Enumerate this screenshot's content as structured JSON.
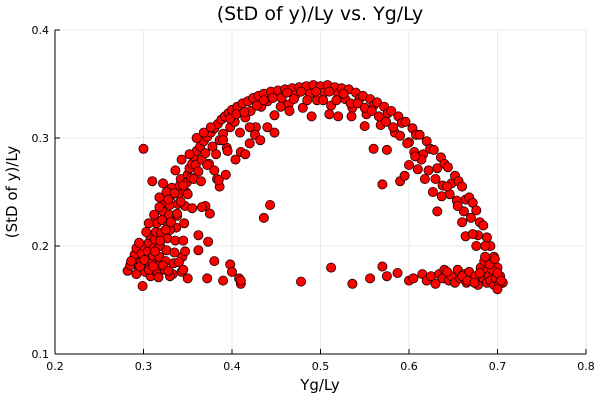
{
  "chart_data": {
    "type": "scatter",
    "title": "(StD of y)/Ly vs. Yg/Ly",
    "xlabel": "Yg/Ly",
    "ylabel": "(StD of y)/Ly",
    "xlim": [
      0.2,
      0.8
    ],
    "ylim": [
      0.1,
      0.4
    ],
    "xticks": [
      "0.2",
      "0.3",
      "0.4",
      "0.5",
      "0.6",
      "0.7",
      "0.8"
    ],
    "yticks": [
      "0.1",
      "0.2",
      "0.3",
      "0.4"
    ],
    "grid": true,
    "legend": "none",
    "marker_color": "#ff0000",
    "marker_edge_color": "#1a0000",
    "points": [
      [
        0.282,
        0.177
      ],
      [
        0.285,
        0.182
      ],
      [
        0.288,
        0.187
      ],
      [
        0.29,
        0.192
      ],
      [
        0.292,
        0.198
      ],
      [
        0.295,
        0.179
      ],
      [
        0.297,
        0.185
      ],
      [
        0.298,
        0.193
      ],
      [
        0.299,
        0.163
      ],
      [
        0.3,
        0.2
      ],
      [
        0.302,
        0.176
      ],
      [
        0.303,
        0.181
      ],
      [
        0.304,
        0.188
      ],
      [
        0.305,
        0.195
      ],
      [
        0.306,
        0.203
      ],
      [
        0.307,
        0.21
      ],
      [
        0.308,
        0.172
      ],
      [
        0.309,
        0.178
      ],
      [
        0.31,
        0.185
      ],
      [
        0.311,
        0.191
      ],
      [
        0.312,
        0.198
      ],
      [
        0.313,
        0.206
      ],
      [
        0.314,
        0.213
      ],
      [
        0.315,
        0.221
      ],
      [
        0.316,
        0.175
      ],
      [
        0.317,
        0.182
      ],
      [
        0.318,
        0.19
      ],
      [
        0.319,
        0.2
      ],
      [
        0.32,
        0.212
      ],
      [
        0.321,
        0.224
      ],
      [
        0.322,
        0.232
      ],
      [
        0.323,
        0.241
      ],
      [
        0.324,
        0.178
      ],
      [
        0.325,
        0.186
      ],
      [
        0.326,
        0.196
      ],
      [
        0.327,
        0.207
      ],
      [
        0.328,
        0.219
      ],
      [
        0.329,
        0.229
      ],
      [
        0.33,
        0.238
      ],
      [
        0.331,
        0.246
      ],
      [
        0.332,
        0.254
      ],
      [
        0.333,
        0.174
      ],
      [
        0.334,
        0.184
      ],
      [
        0.335,
        0.194
      ],
      [
        0.336,
        0.205
      ],
      [
        0.337,
        0.217
      ],
      [
        0.338,
        0.228
      ],
      [
        0.339,
        0.239
      ],
      [
        0.34,
        0.248
      ],
      [
        0.341,
        0.256
      ],
      [
        0.342,
        0.262
      ],
      [
        0.343,
        0.176
      ],
      [
        0.344,
        0.19
      ],
      [
        0.345,
        0.205
      ],
      [
        0.346,
        0.221
      ],
      [
        0.347,
        0.237
      ],
      [
        0.348,
        0.25
      ],
      [
        0.349,
        0.259
      ],
      [
        0.35,
        0.266
      ],
      [
        0.352,
        0.272
      ],
      [
        0.354,
        0.263
      ],
      [
        0.355,
        0.276
      ],
      [
        0.357,
        0.283
      ],
      [
        0.359,
        0.275
      ],
      [
        0.36,
        0.288
      ],
      [
        0.362,
        0.269
      ],
      [
        0.364,
        0.292
      ],
      [
        0.366,
        0.28
      ],
      [
        0.368,
        0.297
      ],
      [
        0.37,
        0.286
      ],
      [
        0.372,
        0.301
      ],
      [
        0.374,
        0.276
      ],
      [
        0.376,
        0.305
      ],
      [
        0.378,
        0.292
      ],
      [
        0.38,
        0.309
      ],
      [
        0.382,
        0.285
      ],
      [
        0.384,
        0.313
      ],
      [
        0.386,
        0.298
      ],
      [
        0.388,
        0.317
      ],
      [
        0.39,
        0.304
      ],
      [
        0.392,
        0.32
      ],
      [
        0.394,
        0.291
      ],
      [
        0.396,
        0.323
      ],
      [
        0.398,
        0.31
      ],
      [
        0.4,
        0.326
      ],
      [
        0.403,
        0.315
      ],
      [
        0.406,
        0.329
      ],
      [
        0.409,
        0.305
      ],
      [
        0.412,
        0.332
      ],
      [
        0.415,
        0.319
      ],
      [
        0.418,
        0.334
      ],
      [
        0.421,
        0.325
      ],
      [
        0.424,
        0.337
      ],
      [
        0.427,
        0.31
      ],
      [
        0.43,
        0.339
      ],
      [
        0.433,
        0.329
      ],
      [
        0.436,
        0.341
      ],
      [
        0.44,
        0.334
      ],
      [
        0.444,
        0.343
      ],
      [
        0.448,
        0.321
      ],
      [
        0.452,
        0.344
      ],
      [
        0.456,
        0.337
      ],
      [
        0.46,
        0.345
      ],
      [
        0.464,
        0.331
      ],
      [
        0.468,
        0.346
      ],
      [
        0.472,
        0.34
      ],
      [
        0.476,
        0.347
      ],
      [
        0.48,
        0.328
      ],
      [
        0.484,
        0.348
      ],
      [
        0.488,
        0.341
      ],
      [
        0.492,
        0.349
      ],
      [
        0.496,
        0.335
      ],
      [
        0.5,
        0.348
      ],
      [
        0.504,
        0.342
      ],
      [
        0.508,
        0.349
      ],
      [
        0.512,
        0.33
      ],
      [
        0.516,
        0.347
      ],
      [
        0.52,
        0.341
      ],
      [
        0.524,
        0.346
      ],
      [
        0.528,
        0.336
      ],
      [
        0.532,
        0.345
      ],
      [
        0.536,
        0.328
      ],
      [
        0.54,
        0.342
      ],
      [
        0.544,
        0.336
      ],
      [
        0.548,
        0.339
      ],
      [
        0.552,
        0.322
      ],
      [
        0.556,
        0.336
      ],
      [
        0.56,
        0.33
      ],
      [
        0.564,
        0.333
      ],
      [
        0.568,
        0.312
      ],
      [
        0.572,
        0.329
      ],
      [
        0.576,
        0.323
      ],
      [
        0.58,
        0.325
      ],
      [
        0.584,
        0.305
      ],
      [
        0.588,
        0.32
      ],
      [
        0.592,
        0.314
      ],
      [
        0.596,
        0.315
      ],
      [
        0.6,
        0.296
      ],
      [
        0.604,
        0.309
      ],
      [
        0.608,
        0.303
      ],
      [
        0.612,
        0.303
      ],
      [
        0.616,
        0.285
      ],
      [
        0.62,
        0.297
      ],
      [
        0.624,
        0.29
      ],
      [
        0.628,
        0.289
      ],
      [
        0.632,
        0.272
      ],
      [
        0.636,
        0.282
      ],
      [
        0.64,
        0.276
      ],
      [
        0.644,
        0.273
      ],
      [
        0.648,
        0.258
      ],
      [
        0.652,
        0.265
      ],
      [
        0.656,
        0.26
      ],
      [
        0.66,
        0.255
      ],
      [
        0.664,
        0.243
      ],
      [
        0.668,
        0.245
      ],
      [
        0.672,
        0.24
      ],
      [
        0.676,
        0.233
      ],
      [
        0.68,
        0.222
      ],
      [
        0.684,
        0.219
      ],
      [
        0.688,
        0.208
      ],
      [
        0.692,
        0.2
      ],
      [
        0.696,
        0.19
      ],
      [
        0.7,
        0.18
      ],
      [
        0.703,
        0.172
      ],
      [
        0.706,
        0.166
      ],
      [
        0.3,
        0.29
      ],
      [
        0.31,
        0.26
      ],
      [
        0.318,
        0.245
      ],
      [
        0.326,
        0.25
      ],
      [
        0.336,
        0.27
      ],
      [
        0.343,
        0.28
      ],
      [
        0.352,
        0.285
      ],
      [
        0.36,
        0.3
      ],
      [
        0.368,
        0.305
      ],
      [
        0.376,
        0.31
      ],
      [
        0.38,
        0.27
      ],
      [
        0.383,
        0.262
      ],
      [
        0.386,
        0.255
      ],
      [
        0.39,
        0.298
      ],
      [
        0.398,
        0.318
      ],
      [
        0.405,
        0.322
      ],
      [
        0.414,
        0.324
      ],
      [
        0.42,
        0.31
      ],
      [
        0.426,
        0.303
      ],
      [
        0.428,
        0.33
      ],
      [
        0.436,
        0.335
      ],
      [
        0.446,
        0.337
      ],
      [
        0.455,
        0.329
      ],
      [
        0.462,
        0.342
      ],
      [
        0.47,
        0.336
      ],
      [
        0.478,
        0.343
      ],
      [
        0.485,
        0.335
      ],
      [
        0.495,
        0.343
      ],
      [
        0.503,
        0.335
      ],
      [
        0.51,
        0.343
      ],
      [
        0.518,
        0.335
      ],
      [
        0.526,
        0.341
      ],
      [
        0.534,
        0.332
      ],
      [
        0.542,
        0.332
      ],
      [
        0.55,
        0.328
      ],
      [
        0.558,
        0.325
      ],
      [
        0.566,
        0.32
      ],
      [
        0.574,
        0.315
      ],
      [
        0.582,
        0.31
      ],
      [
        0.59,
        0.302
      ],
      [
        0.598,
        0.295
      ],
      [
        0.606,
        0.287
      ],
      [
        0.614,
        0.28
      ],
      [
        0.622,
        0.27
      ],
      [
        0.63,
        0.262
      ],
      [
        0.638,
        0.256
      ],
      [
        0.646,
        0.248
      ],
      [
        0.654,
        0.242
      ],
      [
        0.662,
        0.232
      ],
      [
        0.67,
        0.226
      ],
      [
        0.678,
        0.21
      ],
      [
        0.686,
        0.2
      ],
      [
        0.34,
        0.185
      ],
      [
        0.347,
        0.195
      ],
      [
        0.355,
        0.235
      ],
      [
        0.362,
        0.21
      ],
      [
        0.37,
        0.237
      ],
      [
        0.375,
        0.23
      ],
      [
        0.385,
        0.261
      ],
      [
        0.393,
        0.266
      ],
      [
        0.395,
        0.288
      ],
      [
        0.404,
        0.28
      ],
      [
        0.41,
        0.287
      ],
      [
        0.415,
        0.285
      ],
      [
        0.42,
        0.295
      ],
      [
        0.432,
        0.298
      ],
      [
        0.44,
        0.31
      ],
      [
        0.448,
        0.305
      ],
      [
        0.465,
        0.325
      ],
      [
        0.49,
        0.32
      ],
      [
        0.51,
        0.322
      ],
      [
        0.52,
        0.32
      ],
      [
        0.535,
        0.32
      ],
      [
        0.55,
        0.311
      ],
      [
        0.56,
        0.29
      ],
      [
        0.57,
        0.257
      ],
      [
        0.575,
        0.289
      ],
      [
        0.59,
        0.26
      ],
      [
        0.595,
        0.265
      ],
      [
        0.6,
        0.275
      ],
      [
        0.607,
        0.283
      ],
      [
        0.61,
        0.271
      ],
      [
        0.618,
        0.262
      ],
      [
        0.627,
        0.25
      ],
      [
        0.632,
        0.232
      ],
      [
        0.637,
        0.246
      ],
      [
        0.643,
        0.255
      ],
      [
        0.655,
        0.237
      ],
      [
        0.66,
        0.222
      ],
      [
        0.664,
        0.209
      ],
      [
        0.672,
        0.211
      ],
      [
        0.676,
        0.2
      ],
      [
        0.318,
        0.236
      ],
      [
        0.322,
        0.258
      ],
      [
        0.33,
        0.215
      ],
      [
        0.338,
        0.23
      ],
      [
        0.345,
        0.256
      ],
      [
        0.35,
        0.248
      ],
      [
        0.357,
        0.262
      ],
      [
        0.365,
        0.26
      ],
      [
        0.372,
        0.275
      ],
      [
        0.366,
        0.236
      ],
      [
        0.436,
        0.226
      ],
      [
        0.443,
        0.238
      ],
      [
        0.373,
        0.204
      ],
      [
        0.362,
        0.196
      ],
      [
        0.33,
        0.172
      ],
      [
        0.345,
        0.178
      ],
      [
        0.35,
        0.17
      ],
      [
        0.372,
        0.17
      ],
      [
        0.38,
        0.186
      ],
      [
        0.39,
        0.168
      ],
      [
        0.398,
        0.183
      ],
      [
        0.4,
        0.176
      ],
      [
        0.408,
        0.17
      ],
      [
        0.41,
        0.165
      ],
      [
        0.41,
        0.168
      ],
      [
        0.478,
        0.167
      ],
      [
        0.512,
        0.18
      ],
      [
        0.536,
        0.165
      ],
      [
        0.556,
        0.17
      ],
      [
        0.57,
        0.181
      ],
      [
        0.575,
        0.172
      ],
      [
        0.587,
        0.175
      ],
      [
        0.6,
        0.168
      ],
      [
        0.605,
        0.17
      ],
      [
        0.615,
        0.174
      ],
      [
        0.62,
        0.168
      ],
      [
        0.625,
        0.172
      ],
      [
        0.63,
        0.165
      ],
      [
        0.634,
        0.174
      ],
      [
        0.638,
        0.17
      ],
      [
        0.64,
        0.178
      ],
      [
        0.645,
        0.168
      ],
      [
        0.648,
        0.172
      ],
      [
        0.652,
        0.166
      ],
      [
        0.655,
        0.178
      ],
      [
        0.658,
        0.17
      ],
      [
        0.662,
        0.174
      ],
      [
        0.665,
        0.166
      ],
      [
        0.668,
        0.176
      ],
      [
        0.672,
        0.168
      ],
      [
        0.675,
        0.172
      ],
      [
        0.678,
        0.164
      ],
      [
        0.681,
        0.18
      ],
      [
        0.684,
        0.17
      ],
      [
        0.686,
        0.176
      ],
      [
        0.688,
        0.166
      ],
      [
        0.69,
        0.172
      ],
      [
        0.692,
        0.168
      ],
      [
        0.694,
        0.178
      ],
      [
        0.696,
        0.164
      ],
      [
        0.698,
        0.17
      ],
      [
        0.7,
        0.175
      ],
      [
        0.702,
        0.165
      ],
      [
        0.704,
        0.168
      ],
      [
        0.643,
        0.176
      ],
      [
        0.66,
        0.172
      ],
      [
        0.666,
        0.168
      ],
      [
        0.674,
        0.166
      ],
      [
        0.68,
        0.175
      ],
      [
        0.685,
        0.186
      ],
      [
        0.691,
        0.183
      ],
      [
        0.697,
        0.188
      ],
      [
        0.686,
        0.19
      ],
      [
        0.7,
        0.16
      ],
      [
        0.286,
        0.186
      ],
      [
        0.292,
        0.174
      ],
      [
        0.296,
        0.181
      ],
      [
        0.301,
        0.187
      ],
      [
        0.306,
        0.178
      ],
      [
        0.311,
        0.181
      ],
      [
        0.317,
        0.171
      ],
      [
        0.322,
        0.182
      ],
      [
        0.328,
        0.177
      ],
      [
        0.313,
        0.195
      ],
      [
        0.319,
        0.205
      ],
      [
        0.325,
        0.215
      ],
      [
        0.331,
        0.222
      ],
      [
        0.306,
        0.221
      ],
      [
        0.312,
        0.229
      ],
      [
        0.295,
        0.203
      ],
      [
        0.303,
        0.213
      ],
      [
        0.328,
        0.243
      ],
      [
        0.335,
        0.249
      ],
      [
        0.342,
        0.241
      ]
    ]
  }
}
